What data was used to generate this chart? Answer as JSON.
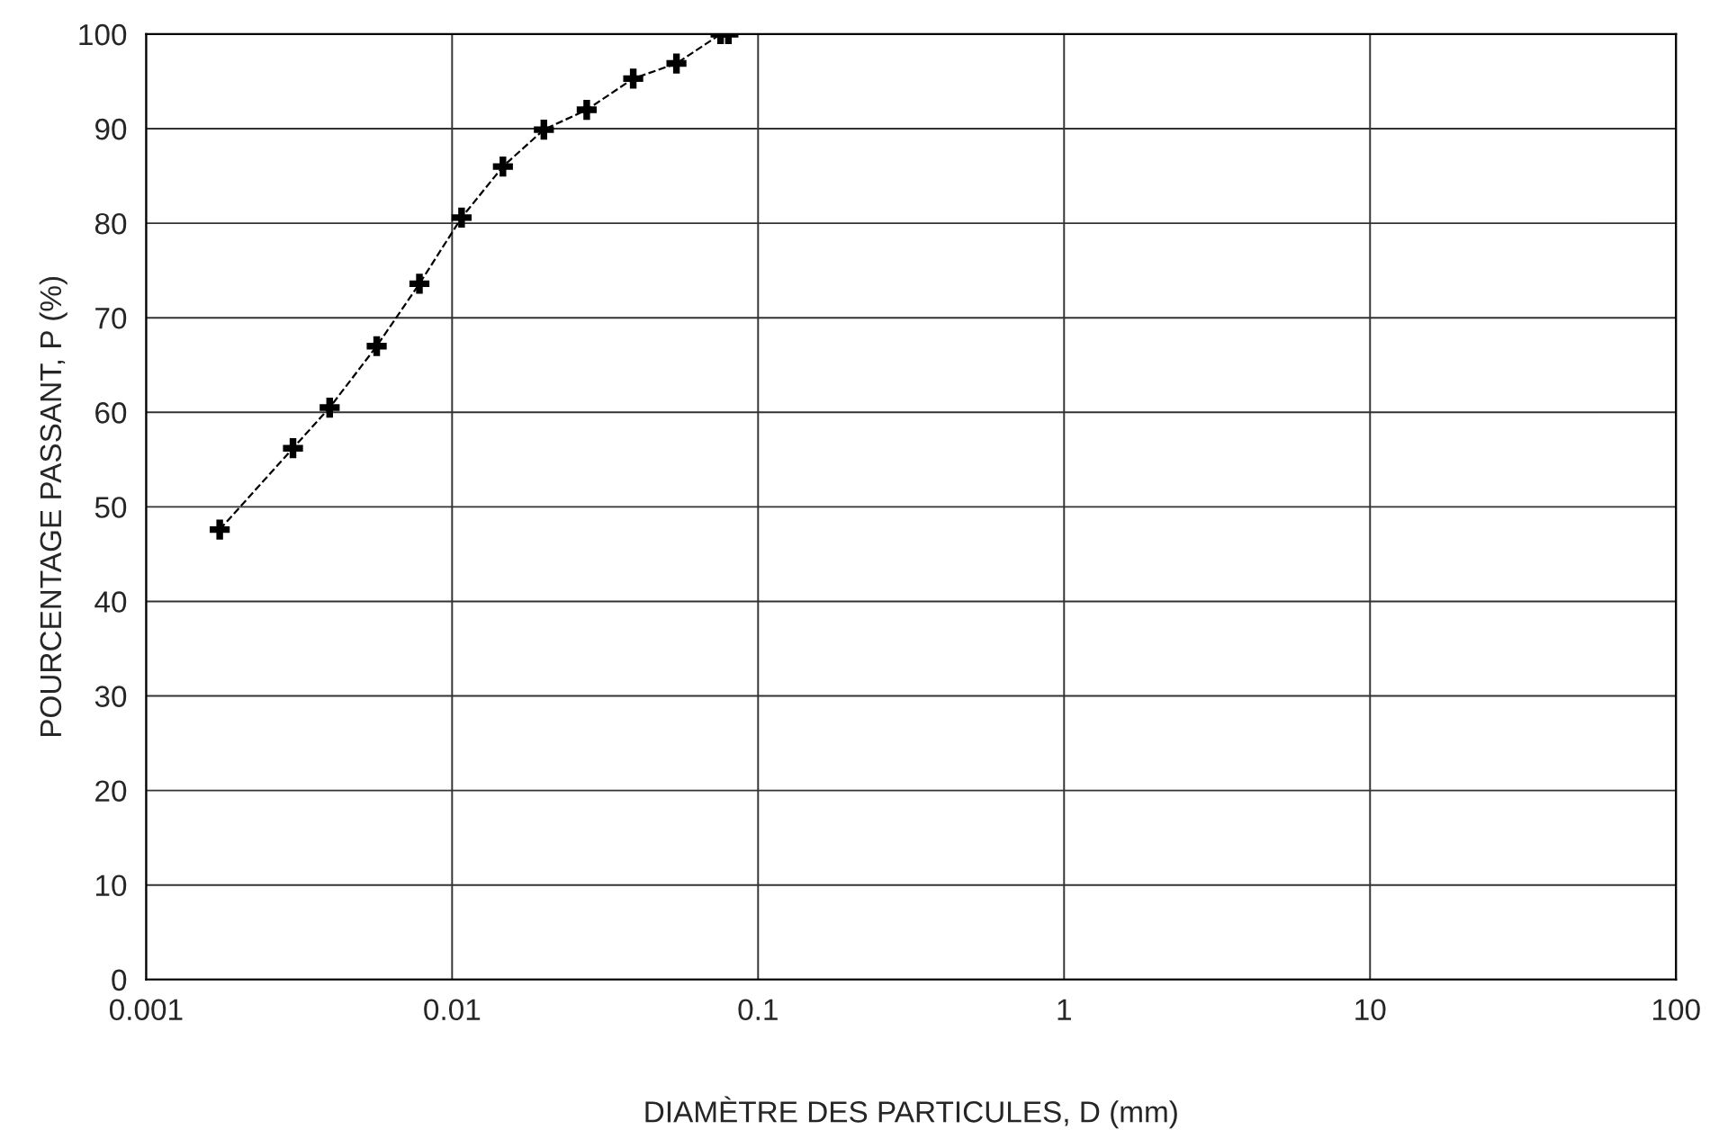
{
  "chart_data": {
    "type": "line",
    "xlabel": "DIAMÈTRE DES PARTICULES, D (mm)",
    "ylabel": "POURCENTAGE PASSANT, P (%)",
    "log": "x",
    "xlim": [
      0.001,
      100
    ],
    "xticks": [
      0.001,
      0.01,
      0.1,
      1,
      10,
      100
    ],
    "ylim": [
      0,
      100
    ],
    "yticks": [
      0,
      10,
      20,
      30,
      40,
      50,
      60,
      70,
      80,
      90,
      100
    ],
    "grid": true,
    "marker": "cross",
    "line_style": "dashed",
    "series": [
      {
        "color": "#000000",
        "x": [
          0.00174,
          0.00302,
          0.00398,
          0.00567,
          0.00782,
          0.01074,
          0.01466,
          0.01995,
          0.02754,
          0.03908,
          0.0541,
          0.0754,
          0.08
        ],
        "values": [
          47.6,
          56.2,
          60.5,
          67.0,
          73.6,
          80.6,
          86.0,
          89.9,
          92.0,
          95.3,
          96.9,
          100,
          100
        ]
      }
    ]
  }
}
